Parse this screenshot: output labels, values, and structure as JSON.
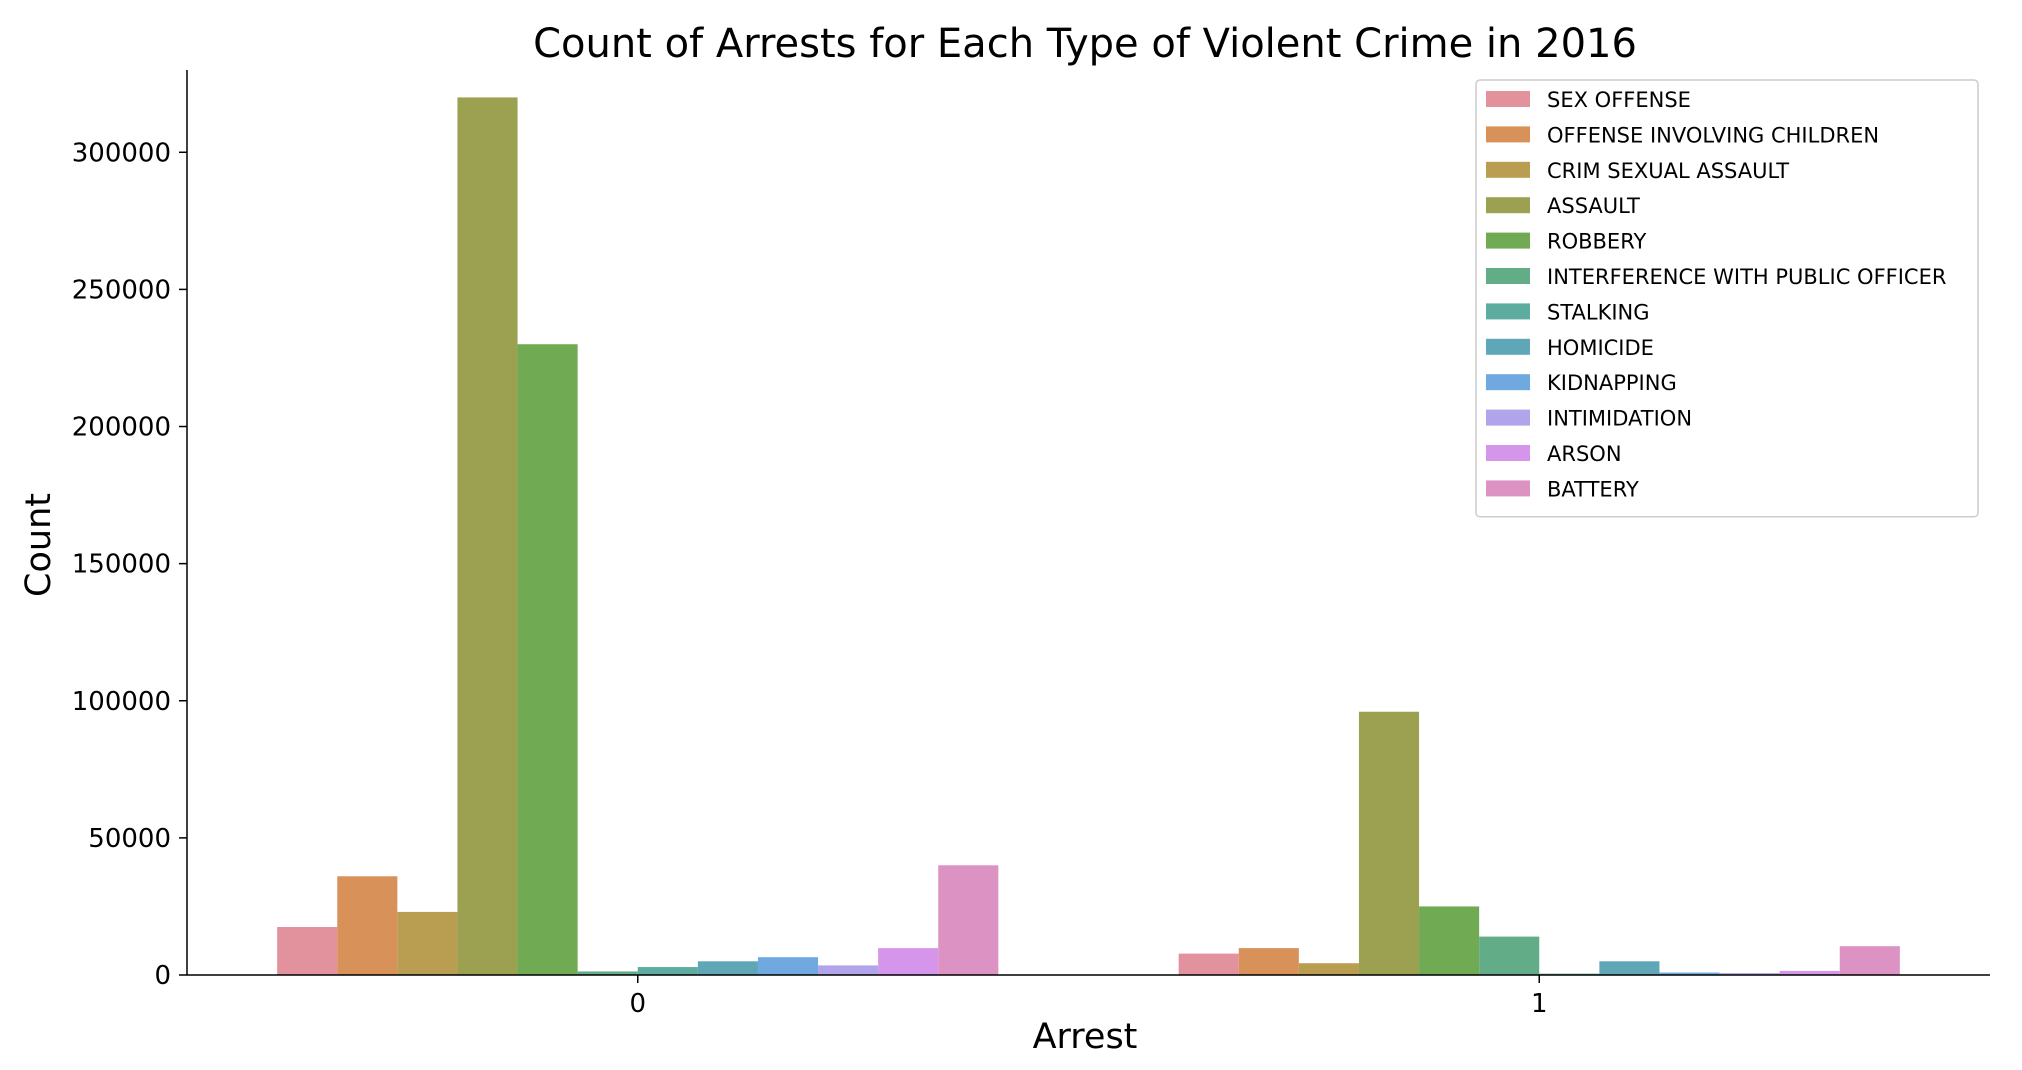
{
  "chart_data": {
    "type": "bar",
    "title": "Count of Arrests for Each Type of Violent Crime in 2016",
    "xlabel": "Arrest",
    "ylabel": "Count",
    "categories": [
      "0",
      "1"
    ],
    "ylim": [
      0,
      330000
    ],
    "yticks": [
      0,
      50000,
      100000,
      150000,
      200000,
      250000,
      300000
    ],
    "ytick_labels": [
      "0",
      "50000",
      "100000",
      "150000",
      "200000",
      "250000",
      "300000"
    ],
    "grid": false,
    "legend_position": "top-right",
    "series": [
      {
        "name": "SEX OFFENSE",
        "color": "#e1929d",
        "values": [
          17500,
          7800
        ]
      },
      {
        "name": "OFFENSE INVOLVING CHILDREN",
        "color": "#d89158",
        "values": [
          36000,
          9800
        ]
      },
      {
        "name": "CRIM SEXUAL ASSAULT",
        "color": "#b99d51",
        "values": [
          23000,
          4300
        ]
      },
      {
        "name": "ASSAULT",
        "color": "#9ba150",
        "values": [
          320000,
          96000
        ]
      },
      {
        "name": "ROBBERY",
        "color": "#70aa53",
        "values": [
          230000,
          25000
        ]
      },
      {
        "name": "INTERFERENCE WITH PUBLIC OFFICER",
        "color": "#62ad88",
        "values": [
          1300,
          14000
        ]
      },
      {
        "name": "STALKING",
        "color": "#5eaba0",
        "values": [
          2900,
          500
        ]
      },
      {
        "name": "HOMICIDE",
        "color": "#5fa7b6",
        "values": [
          5000,
          5000
        ]
      },
      {
        "name": "KIDNAPPING",
        "color": "#70a9e0",
        "values": [
          6500,
          900
        ]
      },
      {
        "name": "INTIMIDATION",
        "color": "#b2a4ea",
        "values": [
          3500,
          700
        ]
      },
      {
        "name": "ARSON",
        "color": "#d495ea",
        "values": [
          9800,
          1500
        ]
      },
      {
        "name": "BATTERY",
        "color": "#dd92c4",
        "values": [
          40000,
          10500
        ]
      }
    ]
  }
}
